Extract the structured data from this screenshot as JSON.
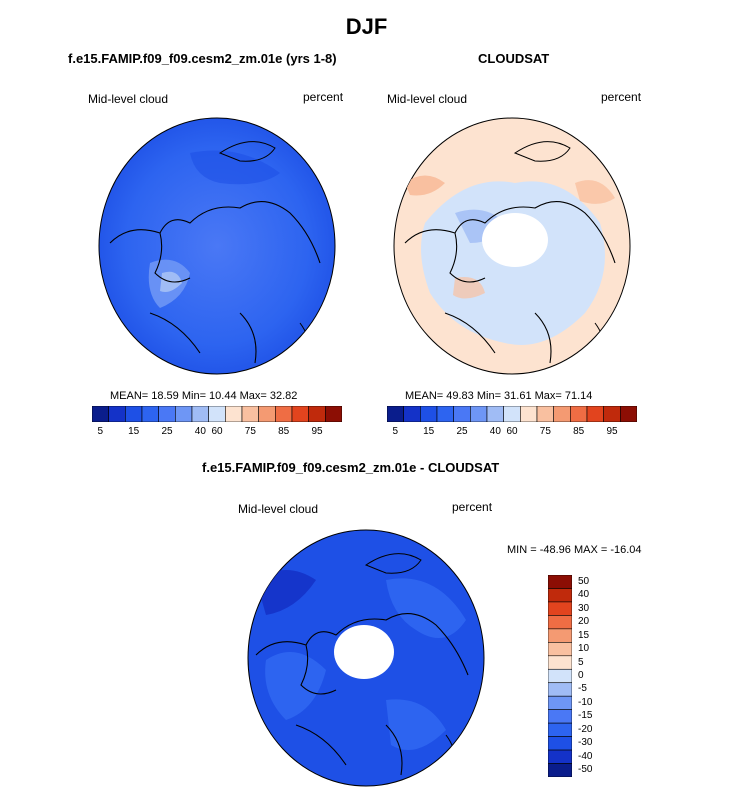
{
  "title": "DJF",
  "units": "percent",
  "field": "Mid-level cloud",
  "colors": {
    "abs_scale": [
      "#0a1d8c",
      "#1432c8",
      "#1e50e6",
      "#2d64f0",
      "#4a78f5",
      "#6e96f5",
      "#a0bcf5",
      "#d2e3fa",
      "#fde3d0",
      "#f9c0a0",
      "#f49a72",
      "#ef6d44",
      "#e2441e",
      "#c02a0c",
      "#8c0e04"
    ],
    "diff_scale": [
      "#0a1d8c",
      "#1432c8",
      "#1e50e6",
      "#2d64f0",
      "#4a78f5",
      "#6e96f5",
      "#a0bcf5",
      "#d2e3fa",
      "#fde3d0",
      "#f9c0a0",
      "#f49a72",
      "#ef6d44",
      "#e2441e",
      "#c02a0c",
      "#8c0e04"
    ],
    "model_fill": "#2d64f0",
    "cloudsat_fill": "#fde3d0",
    "diff_fill": "#1e50e6"
  },
  "panels": {
    "model": {
      "title": "f.e15.FAMIP.f09_f09.cesm2_zm.01e (yrs 1-8)",
      "field": "Mid-level cloud",
      "units": "percent",
      "stats": "MEAN=  18.59  Min=  10.44  Max=  32.82"
    },
    "cloudsat": {
      "title": "CLOUDSAT",
      "field": "Mid-level cloud",
      "units": "percent",
      "stats": "MEAN=  49.83  Min=  31.61  Max=  71.14"
    },
    "diff": {
      "title": "f.e15.FAMIP.f09_f09.cesm2_zm.01e - CLOUDSAT",
      "field": "Mid-level cloud",
      "units": "percent",
      "stats": "MIN = -48.96 MAX = -16.04"
    }
  },
  "chart_data": [
    {
      "type": "heatmap",
      "title": "f.e15.FAMIP.f09_f09.cesm2_zm.01e (yrs 1-8)",
      "projection": "polar stereographic (north)",
      "colorbar_labels": [
        "5",
        "15",
        "25",
        "40",
        "60",
        "75",
        "85",
        "95"
      ],
      "mean": 18.59,
      "min": 10.44,
      "max": 32.82
    },
    {
      "type": "heatmap",
      "title": "CLOUDSAT",
      "projection": "polar stereographic (north)",
      "colorbar_labels": [
        "5",
        "15",
        "25",
        "40",
        "60",
        "75",
        "85",
        "95"
      ],
      "mean": 49.83,
      "min": 31.61,
      "max": 71.14
    },
    {
      "type": "heatmap",
      "title": "f.e15.FAMIP.f09_f09.cesm2_zm.01e - CLOUDSAT",
      "projection": "polar stereographic (north)",
      "colorbar_labels": [
        "50",
        "40",
        "30",
        "20",
        "15",
        "10",
        "5",
        "0",
        "-5",
        "-10",
        "-15",
        "-20",
        "-30",
        "-40",
        "-50"
      ],
      "min": -48.96,
      "max": -16.04
    }
  ]
}
